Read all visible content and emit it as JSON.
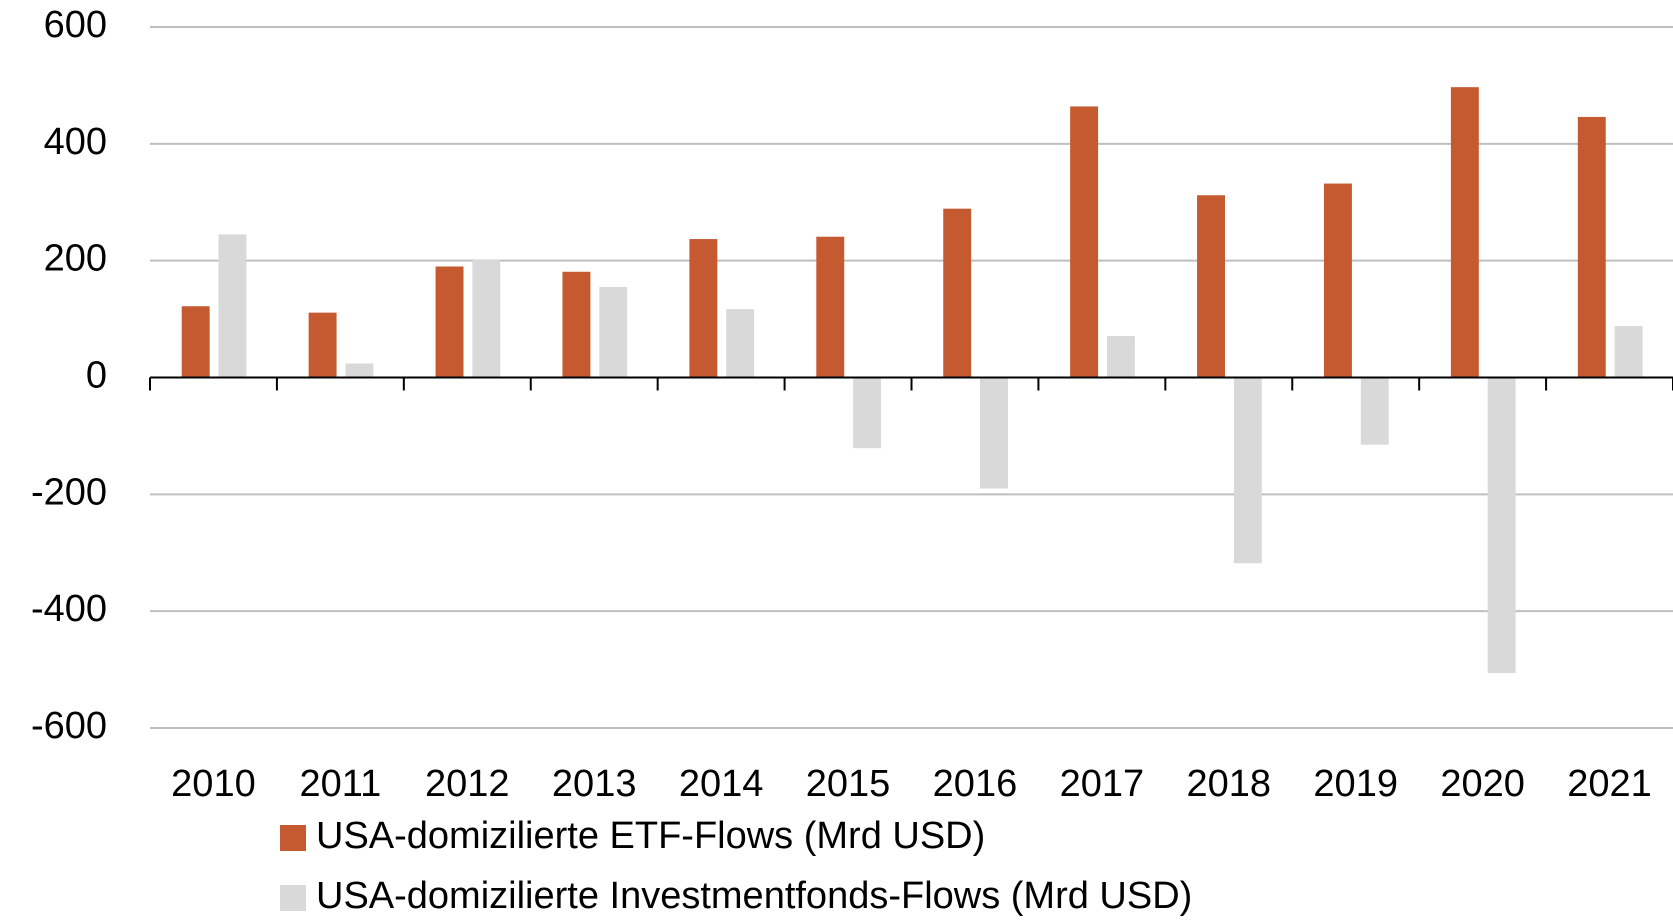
{
  "chart_data": {
    "type": "bar",
    "categories": [
      "2010",
      "2011",
      "2012",
      "2013",
      "2014",
      "2015",
      "2016",
      "2017",
      "2018",
      "2019",
      "2020",
      "2021"
    ],
    "series": [
      {
        "name": "USA-domizilierte ETF-Flows (Mrd USD)",
        "color": "#c55a30",
        "values": [
          122,
          111,
          190,
          181,
          237,
          241,
          289,
          464,
          312,
          332,
          497,
          446
        ]
      },
      {
        "name": "USA-domizilierte Investmentfonds-Flows (Mrd USD)",
        "color": "#d9d9d9",
        "values": [
          245,
          24,
          201,
          155,
          117,
          -121,
          -190,
          71,
          -318,
          -115,
          -506,
          88
        ]
      }
    ],
    "ylim": [
      -600,
      600
    ],
    "yticks": [
      -600,
      -400,
      -200,
      0,
      200,
      400,
      600
    ],
    "grid": true,
    "legend": "bottom"
  }
}
